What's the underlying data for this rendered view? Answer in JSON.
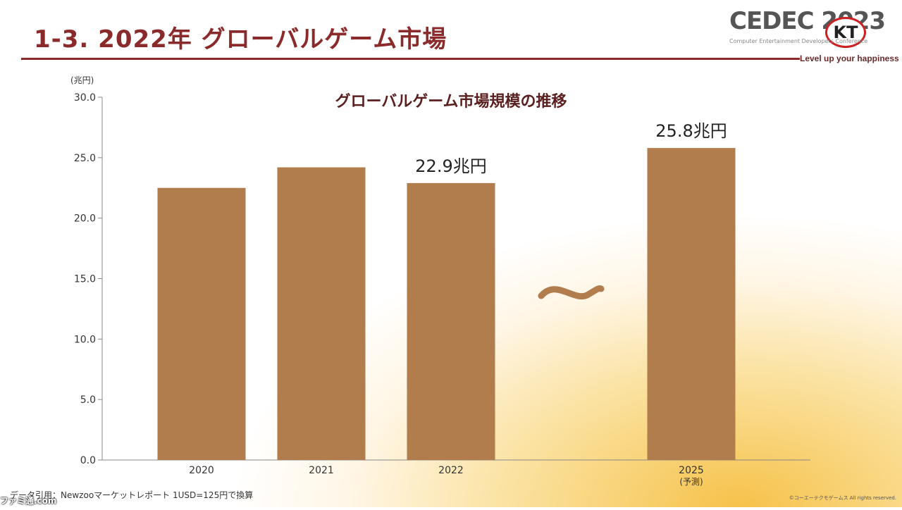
{
  "slide": {
    "title": "1-3. 2022年 グローバルゲーム市場",
    "note": "データ引用：Newzooマーケットレポート 1USD=125円で換算",
    "copyright": "©コーエーテクモゲームス All rights reserved.",
    "watermark": "ファミ通.com"
  },
  "logo": {
    "text": "CEDEC 2023",
    "sub": "Computer Entertainment Developers Conference",
    "badge": "KT",
    "tagline": "Level up your happiness"
  },
  "colors": {
    "bar": "#b27d4c",
    "title": "#8b2a2a",
    "axis": "#888888"
  },
  "chart_data": {
    "type": "bar",
    "title": "グローバルゲーム市場規模の推移",
    "unit_label": "(兆円)",
    "categories": [
      "2020",
      "2021",
      "2022",
      "2025"
    ],
    "category_sublabels": [
      "",
      "",
      "",
      "(予測)"
    ],
    "values": [
      22.5,
      24.2,
      22.9,
      25.8
    ],
    "data_labels": [
      "",
      "",
      "22.9兆円",
      "25.8兆円"
    ],
    "break_symbol": "〜",
    "ylim": [
      0,
      30
    ],
    "yticks": [
      "0.0",
      "5.0",
      "10.0",
      "15.0",
      "20.0",
      "25.0",
      "30.0"
    ],
    "grid": false,
    "legend": "none"
  }
}
